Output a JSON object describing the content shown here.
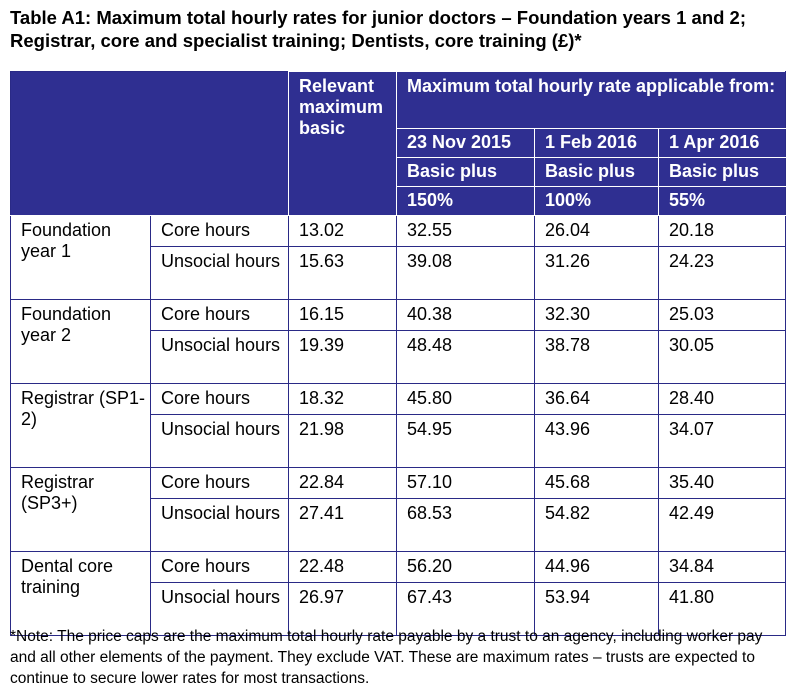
{
  "title": "Table A1: Maximum total hourly rates for junior doctors – Foundation years 1 and 2; Registrar, core and specialist training; Dentists, core training (£)*",
  "header": {
    "relevant": "Relevant maximum basic",
    "applicable": "Maximum total hourly rate applicable from:",
    "dates": [
      "23 Nov 2015",
      "1 Feb 2016",
      "1 Apr 2016"
    ],
    "basic_plus": [
      "Basic plus",
      "Basic plus",
      "Basic plus"
    ],
    "percents": [
      "150%",
      "100%",
      "55%"
    ]
  },
  "groups": [
    {
      "name": "Foundation year 1",
      "rows": [
        {
          "type": "Core hours",
          "basic": "13.02",
          "v1": "32.55",
          "v2": "26.04",
          "v3": "20.18"
        },
        {
          "type": "Unsocial hours",
          "basic": "15.63",
          "v1": "39.08",
          "v2": "31.26",
          "v3": "24.23"
        }
      ]
    },
    {
      "name": "Foundation year 2",
      "rows": [
        {
          "type": "Core hours",
          "basic": "16.15",
          "v1": "40.38",
          "v2": "32.30",
          "v3": "25.03"
        },
        {
          "type": "Unsocial hours",
          "basic": "19.39",
          "v1": "48.48",
          "v2": "38.78",
          "v3": "30.05"
        }
      ]
    },
    {
      "name": "Registrar (SP1-2)",
      "rows": [
        {
          "type": "Core hours",
          "basic": "18.32",
          "v1": "45.80",
          "v2": "36.64",
          "v3": "28.40"
        },
        {
          "type": "Unsocial hours",
          "basic": "21.98",
          "v1": "54.95",
          "v2": "43.96",
          "v3": "34.07"
        }
      ]
    },
    {
      "name": "Registrar (SP3+)",
      "rows": [
        {
          "type": "Core hours",
          "basic": "22.84",
          "v1": "57.10",
          "v2": "45.68",
          "v3": "35.40"
        },
        {
          "type": "Unsocial hours",
          "basic": "27.41",
          "v1": "68.53",
          "v2": "54.82",
          "v3": "42.49"
        }
      ]
    },
    {
      "name": "Dental core training",
      "rows": [
        {
          "type": "Core hours",
          "basic": "22.48",
          "v1": "56.20",
          "v2": "44.96",
          "v3": "34.84"
        },
        {
          "type": "Unsocial hours",
          "basic": "26.97",
          "v1": "67.43",
          "v2": "53.94",
          "v3": "41.80"
        }
      ]
    }
  ],
  "note": "*Note: The price caps are the maximum total hourly rate payable by a trust to an agency, including worker pay and all other elements of the payment. They exclude VAT. These are maximum rates – trusts are expected to continue to secure lower rates for most transactions.",
  "colors": {
    "header_bg": "#2f2f91",
    "border": "#2a2a86"
  }
}
